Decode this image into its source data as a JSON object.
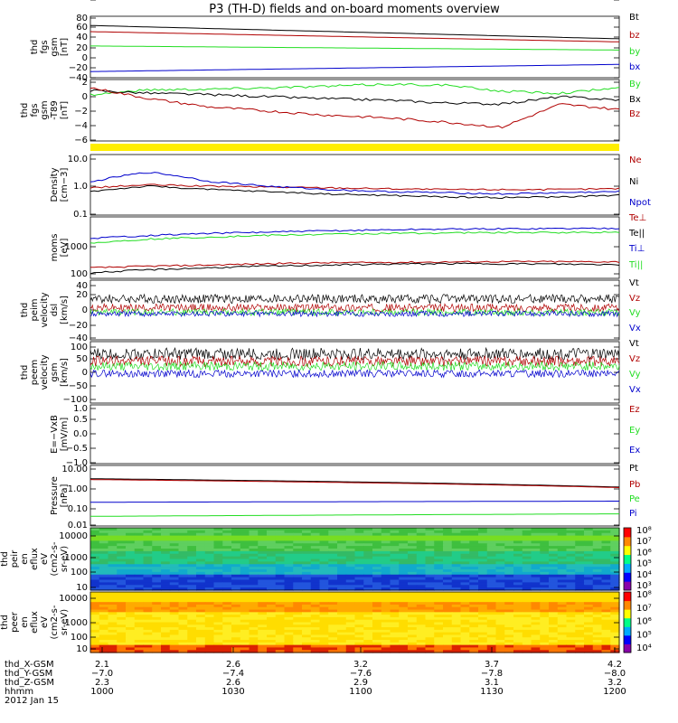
{
  "title": "P3 (TH-D) fields and on-board moments overview",
  "colors": {
    "black": "#000000",
    "red": "#b00000",
    "green": "#22dd22",
    "blue": "#0000cc",
    "yellow": "#ffee00"
  },
  "chart_data": [
    {
      "type": "line",
      "ylabel": [
        "thd",
        "fgs",
        "gsm",
        "[nT]"
      ],
      "ylim": [
        -40,
        80
      ],
      "yticks": [
        "80",
        "60",
        "40",
        "20",
        "0",
        "−20",
        "−40"
      ],
      "series": [
        {
          "name": "Bt",
          "color": "black",
          "values": [
            62,
            36
          ]
        },
        {
          "name": "bz",
          "color": "red",
          "values": [
            50,
            30
          ]
        },
        {
          "name": "by",
          "color": "green",
          "values": [
            22,
            14
          ]
        },
        {
          "name": "bx",
          "color": "blue",
          "values": [
            -28,
            -14
          ]
        }
      ]
    },
    {
      "type": "line",
      "ylabel": [
        "thd",
        "fgs",
        "gsm",
        "-T89",
        "[nT]"
      ],
      "ylim": [
        -7,
        2
      ],
      "yticks": [
        "2",
        "0",
        "−2",
        "−4",
        "−6"
      ],
      "series": [
        {
          "name": "By",
          "color": "green",
          "values": [
            -0.2,
            0.5,
            0.6,
            0.8,
            1.0,
            1.3,
            1.2,
            0.3,
            0.0,
            0.8
          ]
        },
        {
          "name": "Bx",
          "color": "black",
          "values": [
            0.4,
            0.0,
            -0.2,
            -0.5,
            -0.8,
            -1.0,
            -1.4,
            -1.6,
            -0.5,
            -1.0
          ]
        },
        {
          "name": "Bz",
          "color": "red",
          "values": [
            0.8,
            -0.8,
            -2.0,
            -2.6,
            -3.2,
            -3.6,
            -4.2,
            -5.0,
            -1.6,
            -2.4
          ]
        }
      ]
    },
    {
      "type": "line",
      "ylabel": [
        "Density",
        "[cm−3]"
      ],
      "ylim": [
        0.1,
        10
      ],
      "yticks": [
        "10.0",
        "1.0",
        "0.1"
      ],
      "series": [
        {
          "name": "Ne",
          "color": "red",
          "values": [
            0.8,
            1.0,
            0.9,
            0.85,
            0.8,
            0.75,
            0.7,
            0.7,
            0.7,
            0.75
          ]
        },
        {
          "name": "Ni",
          "color": "black",
          "values": [
            0.6,
            0.9,
            0.7,
            0.6,
            0.5,
            0.45,
            0.4,
            0.38,
            0.4,
            0.45
          ]
        },
        {
          "name": "Npot",
          "color": "blue",
          "values": [
            1.2,
            2.6,
            1.3,
            0.9,
            0.7,
            0.6,
            0.55,
            0.5,
            0.55,
            0.6
          ]
        }
      ]
    },
    {
      "type": "line",
      "ylabel": [
        "moms",
        "[eV]"
      ],
      "ylim": [
        100,
        10000
      ],
      "yticks": [
        "1000",
        "100"
      ],
      "series": [
        {
          "name": "Te⊥",
          "color": "red",
          "values": [
            220,
            250,
            270,
            300,
            320,
            330,
            340,
            350,
            350,
            345
          ]
        },
        {
          "name": "Te||",
          "color": "black",
          "values": [
            150,
            190,
            220,
            250,
            270,
            290,
            300,
            300,
            290,
            280
          ]
        },
        {
          "name": "Ti⊥",
          "color": "blue",
          "values": [
            2000,
            2500,
            2900,
            3200,
            3500,
            3800,
            4000,
            4100,
            4200,
            4300
          ]
        },
        {
          "name": "Ti||",
          "color": "green",
          "values": [
            1400,
            1900,
            2200,
            2500,
            2700,
            2900,
            3000,
            3100,
            3100,
            3200
          ]
        }
      ]
    },
    {
      "type": "line",
      "ylabel": [
        "thd",
        "peim",
        "velocity",
        "dsl",
        "[km/s]"
      ],
      "ylim": [
        -40,
        40
      ],
      "yticks": [
        "40",
        "20",
        "0",
        "−20",
        "−40"
      ],
      "series": [
        {
          "name": "Vt",
          "color": "black",
          "values": [
            15,
            15
          ]
        },
        {
          "name": "Vz",
          "color": "red",
          "values": [
            3,
            3
          ]
        },
        {
          "name": "Vy",
          "color": "green",
          "values": [
            -3,
            -3
          ]
        },
        {
          "name": "Vx",
          "color": "blue",
          "values": [
            -5,
            -5
          ]
        }
      ]
    },
    {
      "type": "line",
      "ylabel": [
        "thd",
        "peem",
        "velocity",
        "gsm",
        "[km/s]"
      ],
      "ylim": [
        -150,
        100
      ],
      "yticks": [
        "100",
        "50",
        "0",
        "−50",
        "−100",
        "−150"
      ],
      "series": [
        {
          "name": "Vt",
          "color": "black",
          "values": [
            50,
            50
          ]
        },
        {
          "name": "Vz",
          "color": "red",
          "values": [
            20,
            20
          ]
        },
        {
          "name": "Vy",
          "color": "green",
          "values": [
            0,
            0
          ]
        },
        {
          "name": "Vx",
          "color": "blue",
          "values": [
            -30,
            -30
          ]
        }
      ]
    },
    {
      "type": "line",
      "ylabel": [
        "E=−VxB",
        "[mV/m]"
      ],
      "ylim": [
        -1,
        1
      ],
      "yticks": [
        "1.0",
        "0.5",
        "0.0",
        "−0.5",
        "−1.0"
      ],
      "series": [
        {
          "name": "Ez",
          "color": "red",
          "values": []
        },
        {
          "name": "Ey",
          "color": "green",
          "values": []
        },
        {
          "name": "Ex",
          "color": "blue",
          "values": []
        }
      ]
    },
    {
      "type": "line",
      "ylabel": [
        "Pressure",
        "[nPa]"
      ],
      "ylim": [
        0.01,
        10
      ],
      "yticks": [
        "10.00",
        "1.00",
        "0.10",
        "0.01"
      ],
      "series": [
        {
          "name": "Pt",
          "color": "black",
          "values": [
            2.2,
            0.85
          ]
        },
        {
          "name": "Pb",
          "color": "red",
          "values": [
            2.0,
            0.8
          ]
        },
        {
          "name": "Pe",
          "color": "green",
          "values": [
            0.03,
            0.04
          ]
        },
        {
          "name": "Pi",
          "color": "blue",
          "values": [
            0.15,
            0.17
          ]
        }
      ]
    },
    {
      "type": "heatmap",
      "ylabel": [
        "thd",
        "peir",
        "en",
        "eflux",
        "eV",
        "(cm2-s-",
        "sr-eV)"
      ],
      "ylim": [
        10,
        30000
      ],
      "yticks": [
        "10000",
        "1000",
        "100",
        "10"
      ],
      "colorbar": {
        "labels": [
          "10⁸",
          "10⁷",
          "10⁶",
          "10⁵",
          "10⁴",
          "10³"
        ]
      }
    },
    {
      "type": "heatmap",
      "ylabel": [
        "thd",
        "peer",
        "en",
        "eflux",
        "eV",
        "(cm2-s-",
        "sr-eV)"
      ],
      "ylim": [
        10,
        30000
      ],
      "yticks": [
        "10000",
        "1000",
        "100",
        "10"
      ],
      "colorbar": {
        "labels": [
          "10⁸",
          "10⁷",
          "10⁶",
          "10⁵",
          "10⁴"
        ]
      }
    }
  ],
  "xaxis": {
    "rows": [
      {
        "label": "thd_X-GSM",
        "values": [
          "2.1",
          "2.6",
          "3.2",
          "3.7",
          "4.2"
        ]
      },
      {
        "label": "thd_Y-GSM",
        "values": [
          "−7.0",
          "−7.4",
          "−7.6",
          "−7.8",
          "−8.0"
        ]
      },
      {
        "label": "thd_Z-GSM",
        "values": [
          "2.3",
          "2.6",
          "2.9",
          "3.1",
          "3.2"
        ]
      },
      {
        "label": "hhmm",
        "values": [
          "1000",
          "1030",
          "1100",
          "1130",
          "1200"
        ]
      }
    ],
    "date": "2012 Jan 15"
  }
}
